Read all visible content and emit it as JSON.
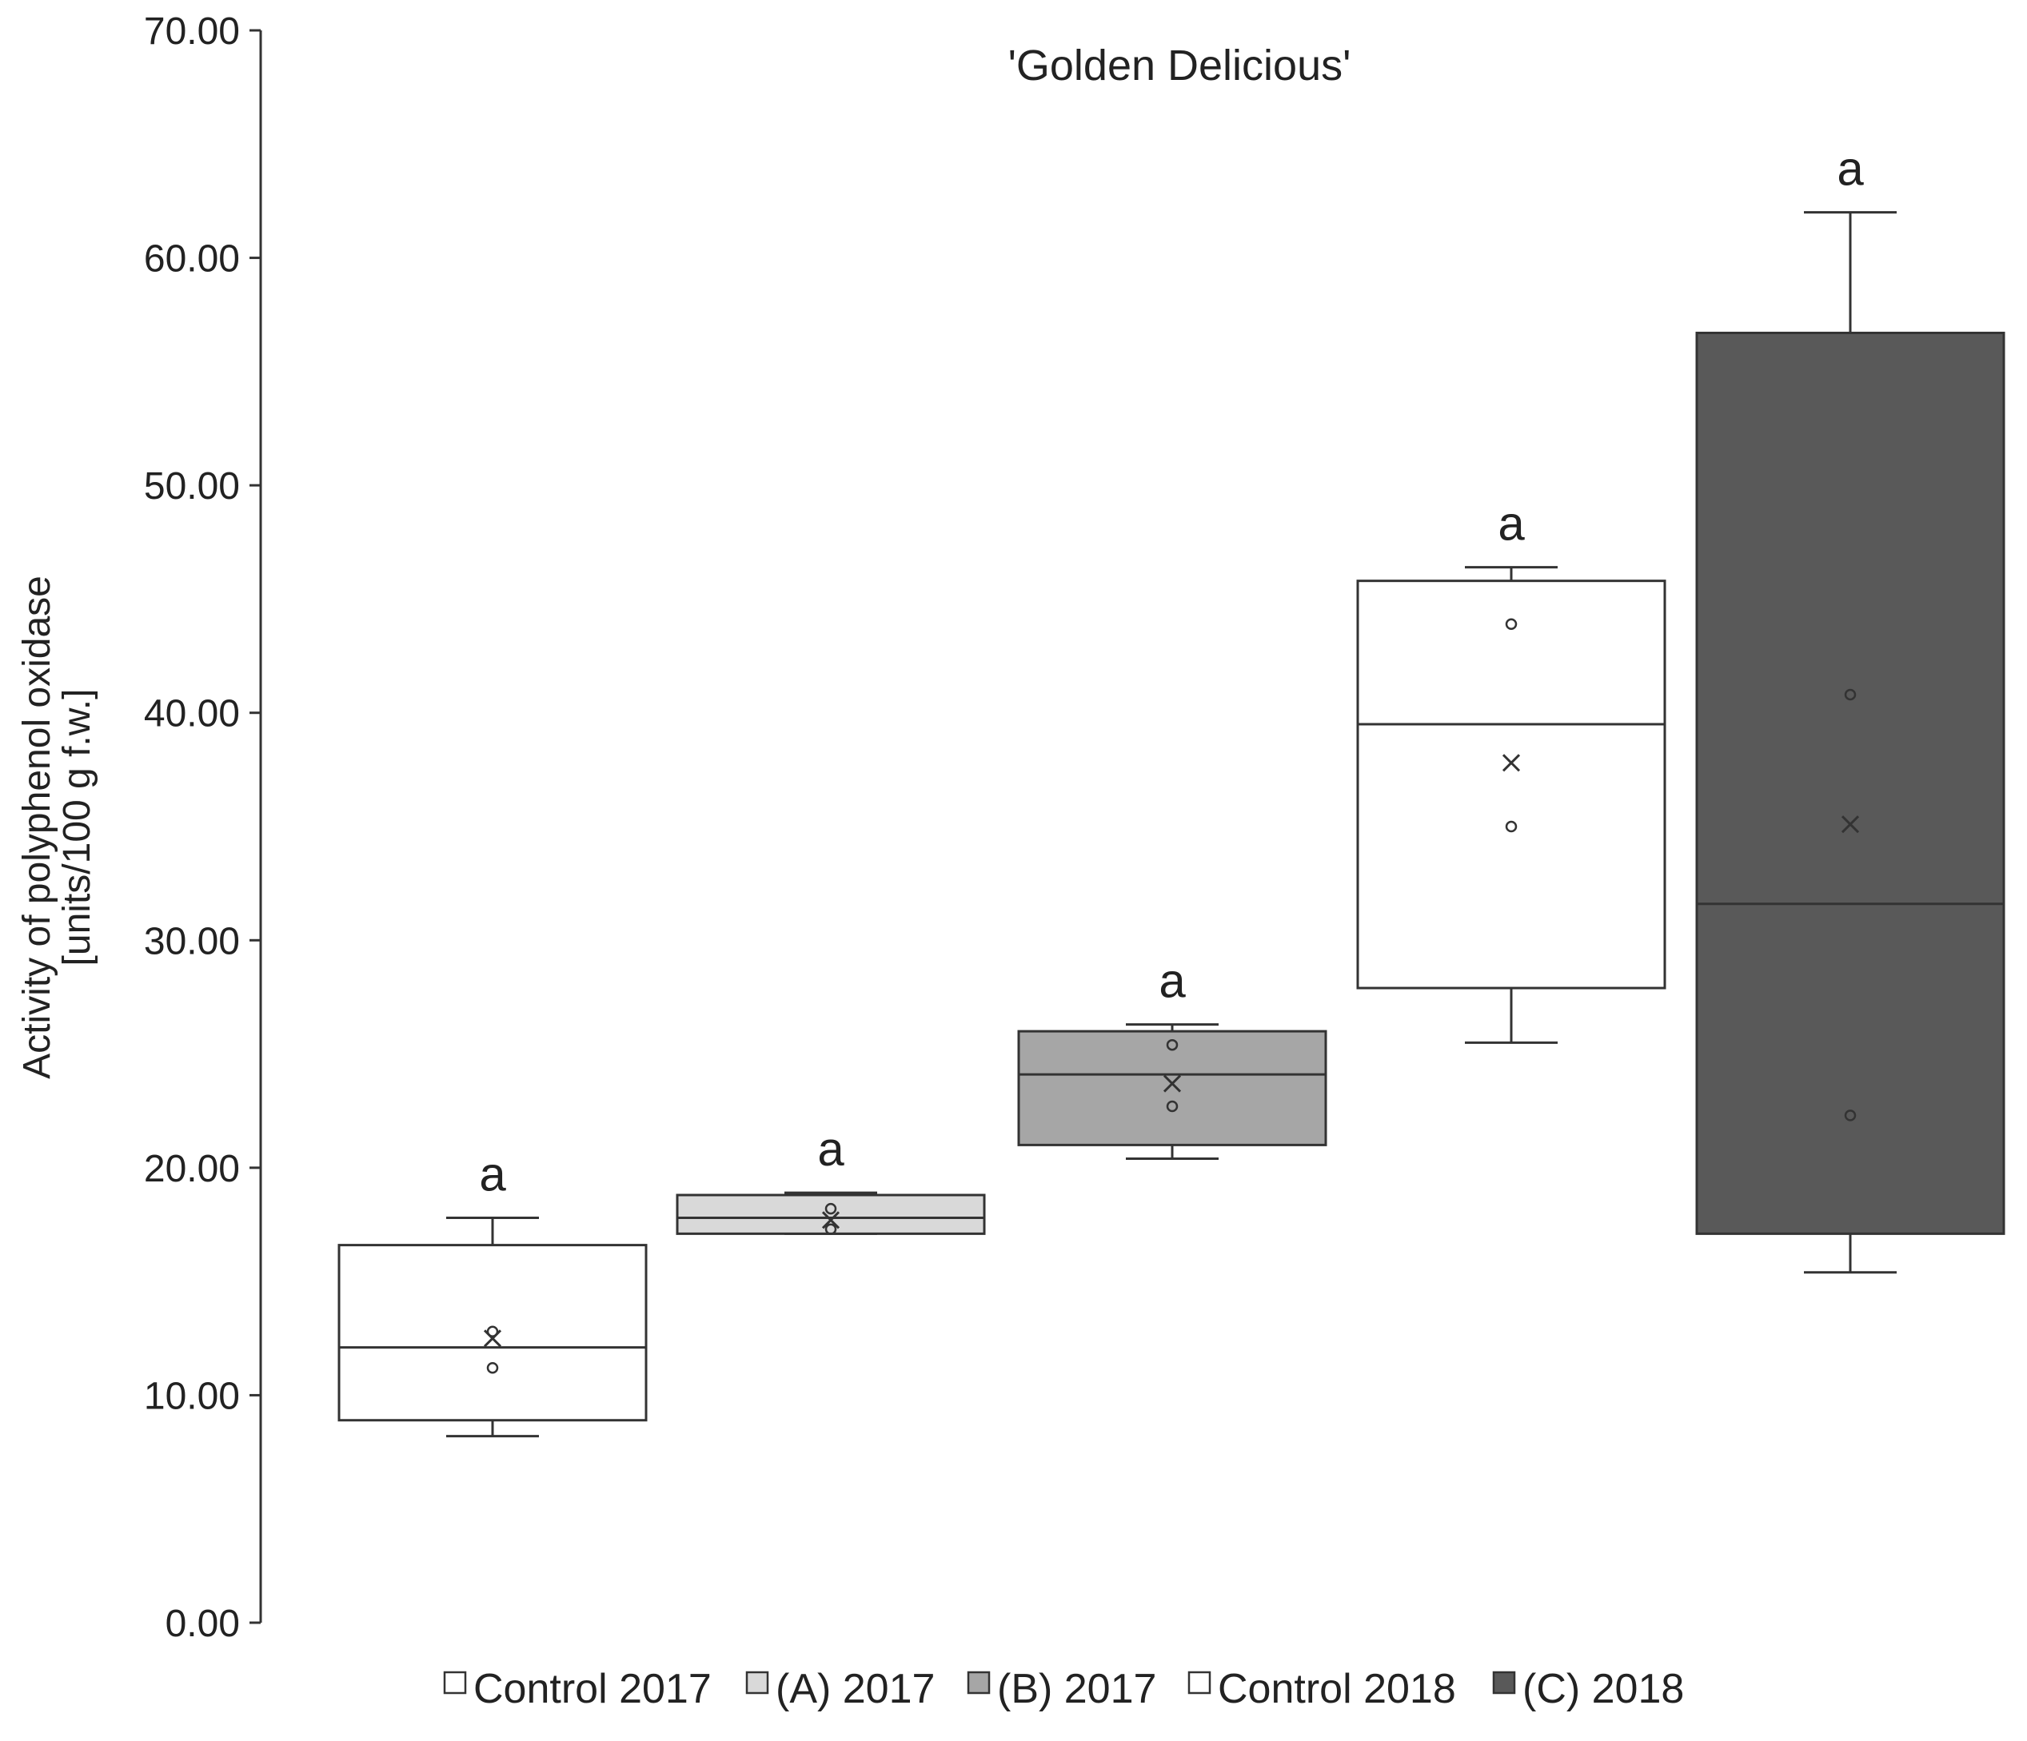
{
  "chart_data": {
    "type": "boxplot",
    "title": "'Golden Delicious'",
    "xlabel": "",
    "ylabel_line1": "Activity of polyphenol oxidase",
    "ylabel_line2": "[units/100 g f.w.]",
    "ylim": [
      0,
      70
    ],
    "yticks": [
      "0.00",
      "10.00",
      "20.00",
      "30.00",
      "40.00",
      "50.00",
      "60.00",
      "70.00"
    ],
    "grid": false,
    "legend_position": "bottom",
    "series": [
      {
        "name": "Control 2017",
        "color": "#ffffff",
        "whisker_low": 8.2,
        "q1": 8.9,
        "median": 12.1,
        "q3": 16.6,
        "whisker_high": 17.8,
        "mean": 12.5,
        "points": [
          12.8,
          11.2
        ],
        "significance": "a"
      },
      {
        "name": "(A) 2017",
        "color": "#d9d9d9",
        "whisker_low": 17.1,
        "q1": 17.1,
        "median": 17.8,
        "q3": 18.8,
        "whisker_high": 18.9,
        "mean": 17.7,
        "points": [
          18.2,
          17.3
        ],
        "significance": "a"
      },
      {
        "name": "(B) 2017",
        "color": "#a6a6a6",
        "whisker_low": 20.4,
        "q1": 21.0,
        "median": 24.1,
        "q3": 26.0,
        "whisker_high": 26.3,
        "mean": 23.7,
        "points": [
          25.4,
          22.7
        ],
        "significance": "a"
      },
      {
        "name": "Control 2018",
        "color": "#ffffff",
        "whisker_low": 25.5,
        "q1": 27.9,
        "median": 39.5,
        "q3": 45.8,
        "whisker_high": 46.4,
        "mean": 37.8,
        "points": [
          43.9,
          35.0
        ],
        "significance": "a"
      },
      {
        "name": "(C) 2018",
        "color": "#595959",
        "whisker_low": 15.4,
        "q1": 17.1,
        "median": 31.6,
        "q3": 56.7,
        "whisker_high": 62.0,
        "mean": 35.1,
        "points": [
          40.8,
          22.3
        ],
        "significance": "a"
      }
    ]
  }
}
